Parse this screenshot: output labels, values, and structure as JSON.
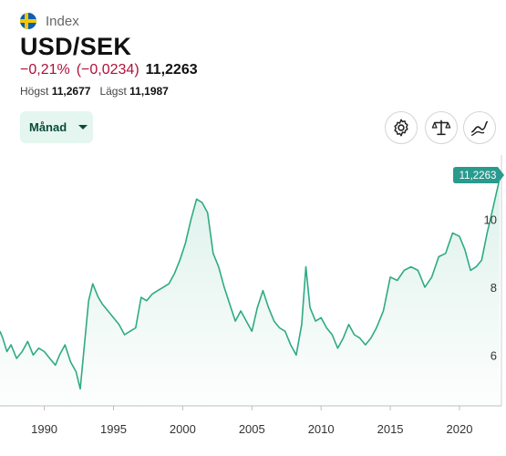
{
  "header": {
    "kind": "Index",
    "title": "USD/SEK",
    "change_pct": "−0,21%",
    "change_abs": "(−0,0234)",
    "last": "11,2263",
    "high_label": "Högst",
    "high_value": "11,2677",
    "low_label": "Lägst",
    "low_value": "11,1987"
  },
  "controls": {
    "period_label": "Månad",
    "icons": [
      "settings-icon",
      "compare-scale-icon",
      "chart-type-icon"
    ]
  },
  "colors": {
    "accent": "#2eaa84",
    "negative": "#b0103a",
    "badge": "#2a9a8e"
  },
  "chart_data": {
    "type": "area",
    "title": "",
    "xlabel": "",
    "ylabel": "",
    "xlim": [
      1986.8,
      2022.9
    ],
    "ylim": [
      4.5,
      11.9
    ],
    "x_ticks": [
      1990,
      1995,
      2000,
      2005,
      2010,
      2015,
      2020
    ],
    "x_tick_labels": [
      "1990",
      "1995",
      "2000",
      "2005",
      "2010",
      "2015",
      "2020"
    ],
    "y_ticks": [
      6,
      8,
      10
    ],
    "y_tick_labels": [
      "6",
      "8",
      "10"
    ],
    "last_value_label": "11,2263",
    "grid": false,
    "series": [
      {
        "x": [
          1986.8,
          1987.0,
          1987.3,
          1987.6,
          1988.0,
          1988.4,
          1988.8,
          1989.2,
          1989.6,
          1990.0,
          1990.4,
          1990.8,
          1991.1,
          1991.5,
          1991.9,
          1992.3,
          1992.6,
          1992.9,
          1993.2,
          1993.5,
          1993.9,
          1994.2,
          1994.6,
          1995.0,
          1995.4,
          1995.8,
          1996.2,
          1996.6,
          1997.0,
          1997.4,
          1997.8,
          1998.2,
          1998.6,
          1999.0,
          1999.4,
          1999.8,
          2000.2,
          2000.6,
          2001.0,
          2001.4,
          2001.8,
          2002.2,
          2002.6,
          2003.0,
          2003.4,
          2003.8,
          2004.2,
          2004.6,
          2005.0,
          2005.4,
          2005.8,
          2006.2,
          2006.6,
          2007.0,
          2007.4,
          2007.8,
          2008.2,
          2008.6,
          2008.9,
          2009.2,
          2009.6,
          2010.0,
          2010.4,
          2010.8,
          2011.2,
          2011.6,
          2012.0,
          2012.4,
          2012.8,
          2013.2,
          2013.6,
          2014.0,
          2014.5,
          2015.0,
          2015.5,
          2016.0,
          2016.5,
          2017.0,
          2017.5,
          2018.0,
          2018.5,
          2019.0,
          2019.5,
          2020.0,
          2020.4,
          2020.8,
          2021.2,
          2021.6,
          2022.0,
          2022.4,
          2022.9
        ],
        "y": [
          6.7,
          6.5,
          6.1,
          6.3,
          5.9,
          6.1,
          6.4,
          6.0,
          6.2,
          6.1,
          5.9,
          5.7,
          6.0,
          6.3,
          5.8,
          5.5,
          5.0,
          6.3,
          7.6,
          8.1,
          7.7,
          7.5,
          7.3,
          7.1,
          6.9,
          6.6,
          6.7,
          6.8,
          7.7,
          7.6,
          7.8,
          7.9,
          8.0,
          8.1,
          8.4,
          8.8,
          9.3,
          10.0,
          10.6,
          10.5,
          10.2,
          9.0,
          8.6,
          8.0,
          7.5,
          7.0,
          7.3,
          7.0,
          6.7,
          7.4,
          7.9,
          7.4,
          7.0,
          6.8,
          6.7,
          6.3,
          6.0,
          6.9,
          8.6,
          7.4,
          7.0,
          7.1,
          6.8,
          6.6,
          6.2,
          6.5,
          6.9,
          6.6,
          6.5,
          6.3,
          6.5,
          6.8,
          7.3,
          8.3,
          8.2,
          8.5,
          8.6,
          8.5,
          8.0,
          8.3,
          8.9,
          9.0,
          9.6,
          9.5,
          9.1,
          8.5,
          8.6,
          8.8,
          9.6,
          10.3,
          11.2
        ]
      }
    ]
  }
}
